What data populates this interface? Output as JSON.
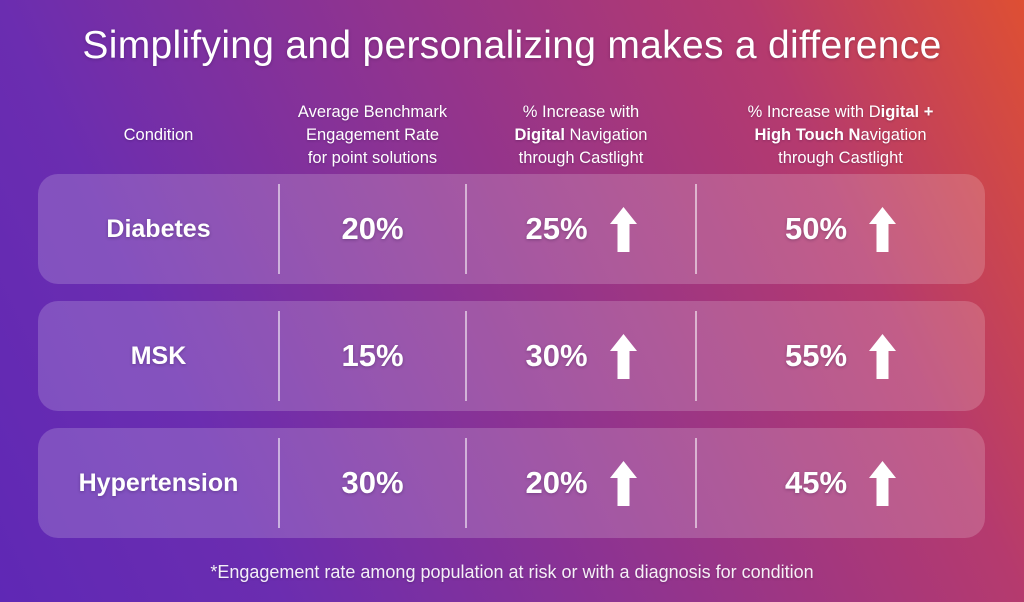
{
  "title": "Simplifying and personalizing makes a difference",
  "footnote": "*Engagement rate among population at risk or with a diagnosis for condition",
  "colors": {
    "gradient_stops": [
      "#5f28b5",
      "#6b2db0",
      "#b53a6e",
      "#de4f33"
    ],
    "row_overlay": "rgba(255,255,255,0.18)",
    "divider": "rgba(255,255,255,0.55)",
    "text": "#ffffff"
  },
  "icons": {
    "up_arrow": "block-up-arrow"
  },
  "table": {
    "columns": [
      {
        "key": "condition",
        "header_lines": [
          [
            {
              "t": "Condition"
            }
          ]
        ]
      },
      {
        "key": "benchmark",
        "header_lines": [
          [
            {
              "t": "Average Benchmark"
            }
          ],
          [
            {
              "t": "Engagement Rate"
            }
          ],
          [
            {
              "t": "for point solutions"
            }
          ]
        ]
      },
      {
        "key": "digital",
        "header_lines": [
          [
            {
              "t": "% Increase with"
            }
          ],
          [
            {
              "t": "Digital",
              "b": true
            },
            {
              "t": " Navigation"
            }
          ],
          [
            {
              "t": "through Castlight"
            }
          ]
        ]
      },
      {
        "key": "high_touch",
        "header_lines": [
          [
            {
              "t": "% Increase with D"
            },
            {
              "t": "igital +",
              "b": true
            }
          ],
          [
            {
              "t": "High Touch N",
              "b": true
            },
            {
              "t": "avigation"
            }
          ],
          [
            {
              "t": "through Castlight"
            }
          ]
        ]
      }
    ],
    "rows": [
      {
        "condition": "Diabetes",
        "benchmark": "20%",
        "digital": "25%",
        "digital_arrow": "up",
        "high_touch": "50%",
        "high_touch_arrow": "up"
      },
      {
        "condition": "MSK",
        "benchmark": "15%",
        "digital": "30%",
        "digital_arrow": "up",
        "high_touch": "55%",
        "high_touch_arrow": "up"
      },
      {
        "condition": "Hypertension",
        "benchmark": "30%",
        "digital": "20%",
        "digital_arrow": "up",
        "high_touch": "45%",
        "high_touch_arrow": "up"
      }
    ]
  },
  "chart_data": {
    "type": "table",
    "title": "Simplifying and personalizing makes a difference",
    "columns": [
      "Condition",
      "Average Benchmark Engagement Rate for point solutions",
      "% Increase with Digital Navigation through Castlight",
      "% Increase with Digital + High Touch Navigation through Castlight"
    ],
    "rows": [
      [
        "Diabetes",
        "20%",
        "25%",
        "50%"
      ],
      [
        "MSK",
        "15%",
        "30%",
        "55%"
      ],
      [
        "Hypertension",
        "30%",
        "20%",
        "45%"
      ]
    ],
    "footnote": "*Engagement rate among population at risk or with a diagnosis for condition"
  }
}
